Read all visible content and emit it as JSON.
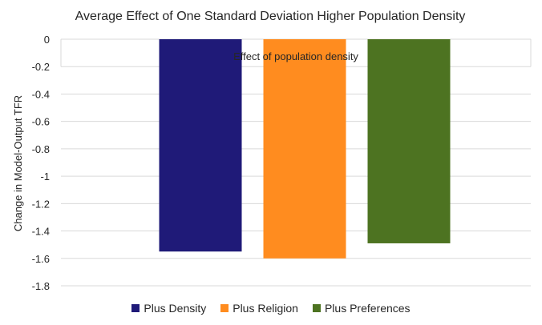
{
  "chart_data": {
    "type": "bar",
    "title": "Average Effect of One Standard Deviation Higher Population Density",
    "xlabel": "",
    "ylabel": "Change in Model-Output TFR",
    "categories": [
      "Effect of population density"
    ],
    "series": [
      {
        "name": "Plus Density",
        "values": [
          -1.55
        ],
        "color": "#1F1A78"
      },
      {
        "name": "Plus Religion",
        "values": [
          -1.6
        ],
        "color": "#FF8C1F"
      },
      {
        "name": "Plus Preferences",
        "values": [
          -1.49
        ],
        "color": "#4D7321"
      }
    ],
    "ylim": [
      -1.8,
      0
    ],
    "yticks": [
      "0",
      "-0.2",
      "-0.4",
      "-0.6",
      "-0.8",
      "-1",
      "-1.2",
      "-1.4",
      "-1.6",
      "-1.8"
    ],
    "grid": true,
    "legend_position": "bottom"
  }
}
